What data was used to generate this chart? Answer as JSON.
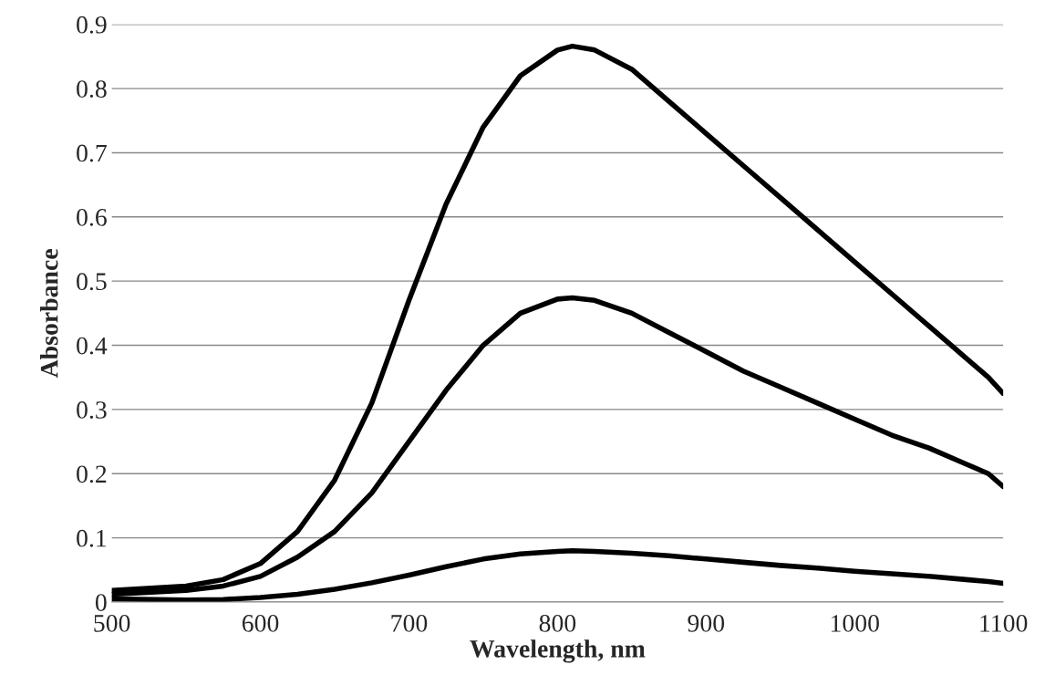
{
  "chart_data": {
    "type": "line",
    "xlabel": "Wavelength, nm",
    "ylabel": "Absorbance",
    "xlim": [
      500,
      1100
    ],
    "xticks": [
      500,
      600,
      700,
      800,
      900,
      1000,
      1100
    ],
    "ylim": [
      0,
      0.9
    ],
    "yticks": [
      0,
      0.1,
      0.2,
      0.3,
      0.4,
      0.5,
      0.6,
      0.7,
      0.8,
      0.9
    ],
    "grid": "y",
    "marker": "none",
    "line_style": "solid",
    "x": [
      500,
      550,
      575,
      600,
      625,
      650,
      675,
      700,
      725,
      750,
      775,
      800,
      810,
      825,
      850,
      875,
      900,
      925,
      950,
      975,
      1000,
      1025,
      1050,
      1075,
      1090,
      1100
    ],
    "series": [
      {
        "color": "#000000",
        "values": [
          0.018,
          0.025,
          0.035,
          0.06,
          0.11,
          0.19,
          0.31,
          0.47,
          0.62,
          0.74,
          0.82,
          0.86,
          0.866,
          0.86,
          0.83,
          0.78,
          0.73,
          0.68,
          0.63,
          0.58,
          0.53,
          0.48,
          0.43,
          0.38,
          0.35,
          0.325
        ]
      },
      {
        "color": "#000000",
        "values": [
          0.012,
          0.018,
          0.025,
          0.04,
          0.07,
          0.11,
          0.17,
          0.25,
          0.33,
          0.4,
          0.45,
          0.472,
          0.474,
          0.47,
          0.45,
          0.42,
          0.39,
          0.36,
          0.335,
          0.31,
          0.285,
          0.26,
          0.24,
          0.215,
          0.2,
          0.18
        ]
      },
      {
        "color": "#000000",
        "values": [
          0.005,
          0.003,
          0.004,
          0.007,
          0.012,
          0.02,
          0.03,
          0.042,
          0.055,
          0.067,
          0.075,
          0.079,
          0.08,
          0.079,
          0.076,
          0.072,
          0.067,
          0.062,
          0.057,
          0.053,
          0.048,
          0.044,
          0.04,
          0.035,
          0.032,
          0.029
        ]
      }
    ]
  }
}
